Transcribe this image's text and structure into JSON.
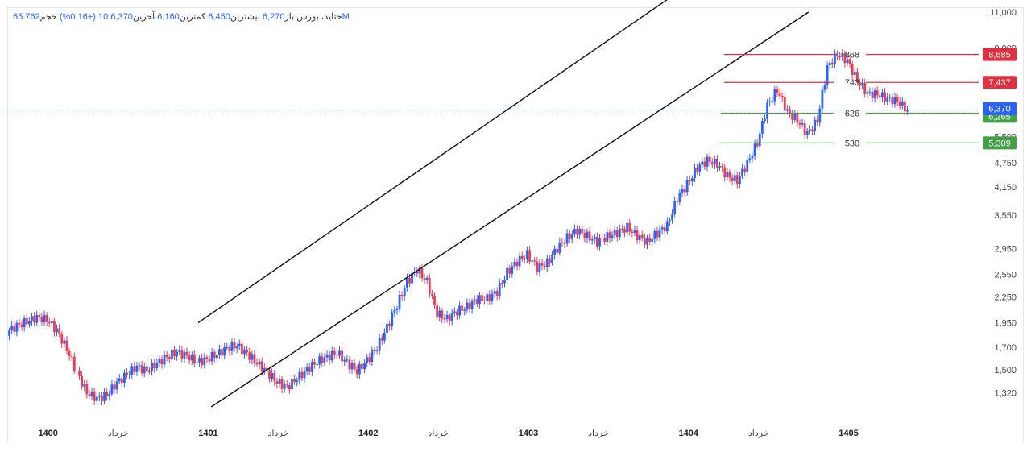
{
  "header": {
    "symbol": "حتاید، بورس",
    "open_label": "باز",
    "open_value": "6,270",
    "high_label": "بیشترین",
    "high_value": "6,450",
    "low_label": "کمترین",
    "low_value": "6,160",
    "close_label": "آخرین",
    "close_value": "6,370",
    "change_value": "10 (+0.16%)",
    "volume_label": "حجم",
    "volume_value": "65.762M"
  },
  "colors": {
    "up": "#2962ff",
    "down": "#ef3b4f",
    "resistance": "#e0303f",
    "support": "#43a047",
    "channel": "#111111",
    "last_price": "#2962ff"
  },
  "chart_data": {
    "type": "candlestick",
    "y_scale": "log",
    "ylim": [
      1220,
      11000
    ],
    "y_ticks": [
      "11,000",
      "9,000",
      "5,500",
      "4,750",
      "4,150",
      "3,550",
      "2,950",
      "2,550",
      "2,250",
      "1,950",
      "1,700",
      "1,500",
      "1,320"
    ],
    "y_tick_values": [
      11000,
      9000,
      5500,
      4750,
      4150,
      3550,
      2950,
      2550,
      2250,
      1950,
      1700,
      1500,
      1320
    ],
    "x_labels": [
      "1400",
      "خرداد",
      "1401",
      "خرداد",
      "1402",
      "خرداد",
      "1403",
      "خرداد",
      "1404",
      "خرداد",
      "1405"
    ],
    "x_label_kind": [
      "year",
      "month",
      "year",
      "month",
      "year",
      "month",
      "year",
      "month",
      "year",
      "month",
      "year"
    ],
    "x_tick_positions": [
      4,
      11,
      20,
      27,
      36,
      43,
      52,
      59,
      68,
      75,
      84
    ],
    "x_range": [
      0,
      97
    ],
    "close_series": [
      1850,
      1920,
      1960,
      2010,
      1980,
      1870,
      1680,
      1480,
      1320,
      1280,
      1300,
      1400,
      1460,
      1530,
      1490,
      1560,
      1610,
      1660,
      1620,
      1570,
      1590,
      1640,
      1690,
      1720,
      1640,
      1560,
      1480,
      1400,
      1360,
      1430,
      1500,
      1570,
      1610,
      1650,
      1560,
      1490,
      1580,
      1700,
      1900,
      2150,
      2450,
      2620,
      2450,
      2050,
      1990,
      2080,
      2130,
      2220,
      2230,
      2320,
      2580,
      2740,
      2850,
      2650,
      2720,
      2950,
      3130,
      3260,
      3160,
      3060,
      3150,
      3220,
      3320,
      3160,
      3060,
      3210,
      3360,
      3900,
      4220,
      4620,
      4820,
      4720,
      4420,
      4300,
      4750,
      5300,
      6550,
      7120,
      6320,
      6000,
      5600,
      6000,
      8100,
      8700,
      8400,
      7500,
      7000,
      6950,
      6800,
      6700,
      6370
    ],
    "channel": [
      {
        "name": "upper",
        "points": [
          [
            19,
            1950
          ],
          [
            66,
            11850
          ]
        ]
      },
      {
        "name": "lower",
        "points": [
          [
            20.3,
            1220
          ],
          [
            80,
            11000
          ]
        ]
      }
    ],
    "levels": [
      {
        "label": "868",
        "price": 8685,
        "badge": "8,685",
        "kind": "resistance"
      },
      {
        "label": "743",
        "price": 7437,
        "badge": "7,437",
        "kind": "resistance"
      },
      {
        "label": "626",
        "price": 6265,
        "badge": "6,265",
        "kind": "support"
      },
      {
        "label": "530",
        "price": 5309,
        "badge": "5,309",
        "kind": "support"
      }
    ],
    "last_price": {
      "price": 6370,
      "badge": "6,370"
    }
  }
}
